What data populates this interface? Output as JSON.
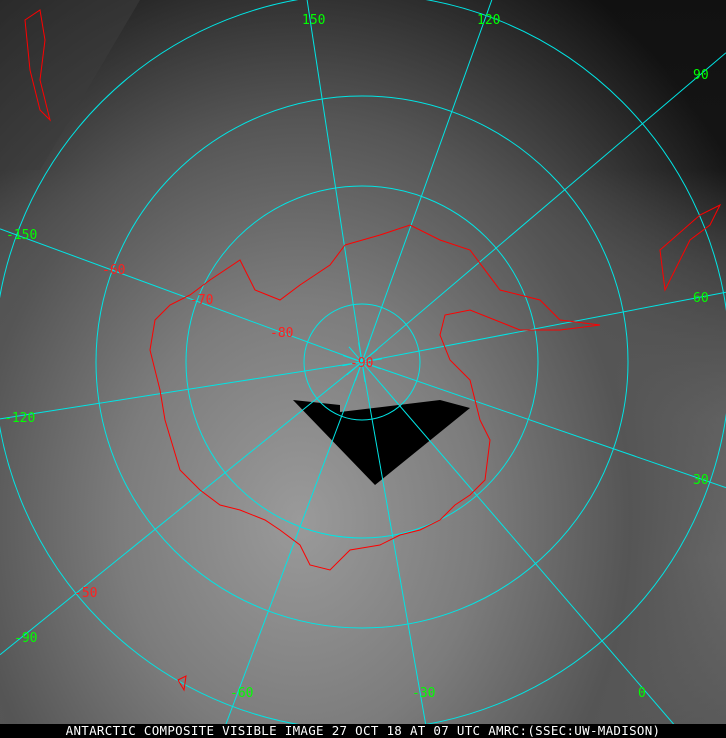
{
  "caption": "ANTARCTIC COMPOSITE VISIBLE IMAGE 27 OCT 18 AT 07 UTC AMRC:(SSEC:UW-MADISON)",
  "colors": {
    "graticule": "#00e5e5",
    "longitude_labels": "#00ff00",
    "latitude_labels": "#ff2020",
    "coastline": "#ff0000"
  },
  "longitude_labels": [
    "150",
    "120",
    "90",
    "60",
    "30",
    "0",
    "-30",
    "-60",
    "-90",
    "-120",
    "-150"
  ],
  "latitude_labels": [
    "-50",
    "-60",
    "-70",
    "-80",
    "-90"
  ]
}
